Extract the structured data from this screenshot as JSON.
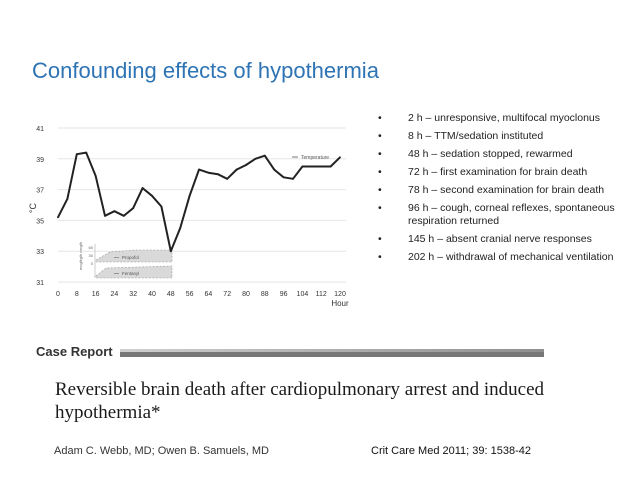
{
  "slide": {
    "title": "Confounding effects of hypothermia"
  },
  "chart_data": {
    "type": "line",
    "title": "",
    "xlabel": "Hour",
    "ylabel": "°C",
    "ylim": [
      31,
      42
    ],
    "xlim": [
      0,
      122
    ],
    "x_ticks": [
      "0",
      "8",
      "16",
      "24",
      "32",
      "40",
      "48",
      "56",
      "64",
      "72",
      "80",
      "88",
      "96",
      "104",
      "112",
      "120"
    ],
    "y_ticks": [
      "31",
      "33",
      "35",
      "37",
      "39",
      "41"
    ],
    "series": [
      {
        "name": "Temperature",
        "x": [
          0,
          4,
          8,
          12,
          16,
          20,
          24,
          28,
          32,
          36,
          40,
          44,
          48,
          52,
          56,
          60,
          64,
          68,
          72,
          76,
          80,
          84,
          88,
          92,
          96,
          100,
          104,
          108,
          112,
          116,
          120
        ],
        "values": [
          35.2,
          36.4,
          39.3,
          39.4,
          37.9,
          35.3,
          35.6,
          35.3,
          35.8,
          37.1,
          36.6,
          35.9,
          33.0,
          34.5,
          36.6,
          38.3,
          38.1,
          38.0,
          37.7,
          38.3,
          38.6,
          39.0,
          39.2,
          38.3,
          37.8,
          37.7,
          38.5,
          38.5,
          38.5,
          38.5,
          39.1
        ],
        "color": "#222222"
      }
    ],
    "inset": {
      "axis_label": "mcg/kg/h   mcg/h",
      "ticks": [
        "60",
        "30",
        "0"
      ],
      "series": [
        {
          "name": "Propofol"
        },
        {
          "name": "Fentanyl"
        }
      ]
    }
  },
  "timeline": [
    {
      "bullet": "•",
      "text": "2 h – unresponsive, multifocal myoclonus"
    },
    {
      "bullet": "•",
      "text": "8 h – TTM/sedation instituted"
    },
    {
      "bullet": "•",
      "text": "48 h – sedation stopped, rewarmed"
    },
    {
      "bullet": "•",
      "text": "72 h – first examination for brain death"
    },
    {
      "bullet": "•",
      "text": "78 h – second examination for brain death"
    },
    {
      "bullet": "•",
      "text": "96 h – cough, corneal reflexes, spontaneous respiration returned"
    },
    {
      "bullet": "•",
      "text": "145 h – absent cranial nerve responses"
    },
    {
      "bullet": "•",
      "text": "202 h – withdrawal of mechanical ventilation"
    }
  ],
  "paper": {
    "section_label": "Case Report",
    "title": "Reversible brain death after cardiopulmonary arrest and induced hypothermia*",
    "authors": "Adam C. Webb, MD; Owen B. Samuels, MD",
    "citation": "Crit Care Med 2011; 39: 1538-42"
  }
}
